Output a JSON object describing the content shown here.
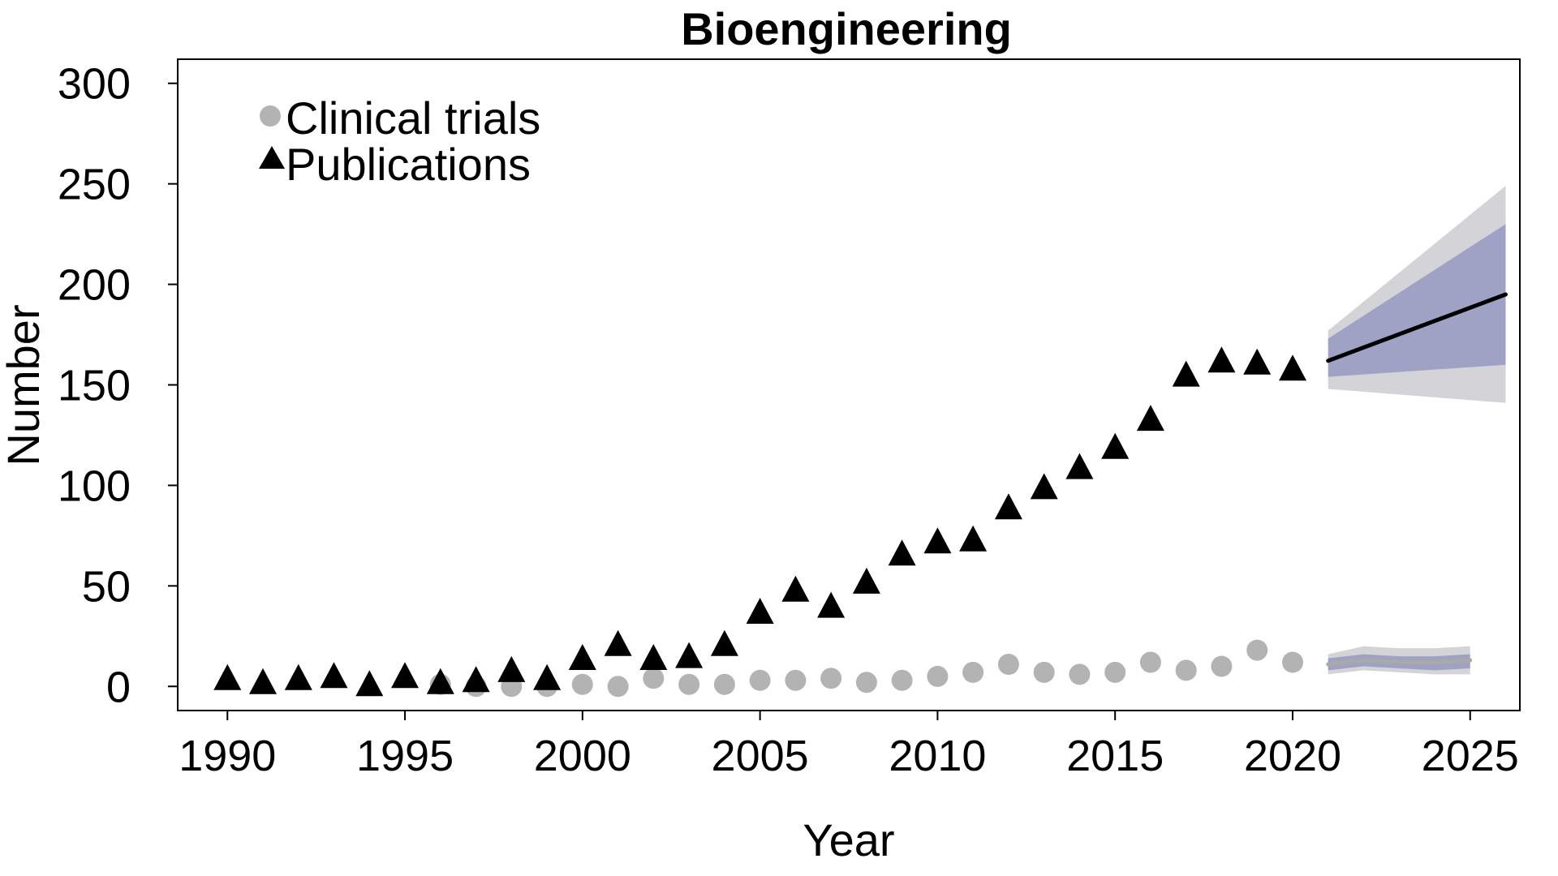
{
  "chart_data": {
    "type": "scatter",
    "title": "Bioengineering",
    "xlabel": "Year",
    "ylabel": "Number",
    "xlim": [
      1988.6,
      2026.4
    ],
    "ylim": [
      -12,
      312
    ],
    "xticks": [
      1990,
      1995,
      2000,
      2005,
      2010,
      2015,
      2020,
      2025
    ],
    "yticks": [
      0,
      50,
      100,
      150,
      200,
      250,
      300
    ],
    "legend_position": "top-left",
    "grid": false,
    "series": [
      {
        "name": "Clinical trials",
        "marker": "circle",
        "color": "#b3b3b3",
        "x": [
          1996,
          1997,
          1998,
          1999,
          2000,
          2001,
          2002,
          2003,
          2004,
          2005,
          2006,
          2007,
          2008,
          2009,
          2010,
          2011,
          2012,
          2013,
          2014,
          2015,
          2016,
          2017,
          2018,
          2019,
          2020
        ],
        "y": [
          1,
          0,
          0,
          0,
          1,
          0,
          4,
          1,
          1,
          3,
          3,
          4,
          2,
          3,
          5,
          7,
          11,
          7,
          6,
          7,
          12,
          8,
          10,
          18,
          12
        ]
      },
      {
        "name": "Publications",
        "marker": "triangle",
        "color": "#000000",
        "x": [
          1990,
          1991,
          1992,
          1993,
          1994,
          1995,
          1996,
          1997,
          1998,
          1999,
          2000,
          2001,
          2002,
          2003,
          2004,
          2005,
          2006,
          2007,
          2008,
          2009,
          2010,
          2011,
          2012,
          2013,
          2014,
          2015,
          2016,
          2017,
          2018,
          2019,
          2020
        ],
        "y": [
          3,
          1,
          3,
          4,
          0,
          4,
          1,
          2,
          7,
          3,
          13,
          20,
          13,
          14,
          20,
          36,
          47,
          39,
          51,
          65,
          71,
          72,
          88,
          98,
          108,
          118,
          132,
          154,
          161,
          160,
          157
        ]
      }
    ],
    "forecasts": [
      {
        "name": "Publications forecast",
        "x": [
          2021,
          2026
        ],
        "y": [
          162,
          195
        ],
        "inner_lower": [
          154,
          160
        ],
        "inner_upper": [
          173,
          230
        ],
        "outer_lower": [
          148,
          141
        ],
        "outer_upper": [
          177,
          249
        ],
        "line_color": "#000000",
        "inner_color": "#9fa2c4",
        "outer_color": "#d3d3d8"
      },
      {
        "name": "Clinical trials forecast",
        "x": [
          2021,
          2022,
          2023,
          2024,
          2025
        ],
        "y": [
          11,
          13,
          12,
          12,
          13
        ],
        "inner_lower": [
          8,
          10,
          9,
          8,
          9
        ],
        "inner_upper": [
          14,
          16,
          15,
          15,
          16
        ],
        "outer_lower": [
          6,
          8,
          7,
          6,
          6
        ],
        "outer_upper": [
          16,
          20,
          19,
          19,
          20
        ],
        "line_color": "#a9a9a9",
        "inner_color": "#9fa2c4",
        "outer_color": "#d3d3d8"
      }
    ]
  }
}
